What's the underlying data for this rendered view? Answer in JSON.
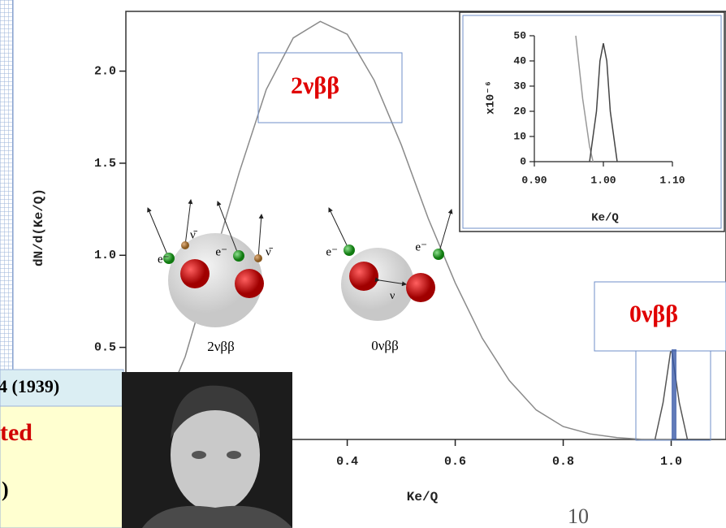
{
  "chart_data": [
    {
      "type": "line",
      "xlabel": "Ke/Q",
      "ylabel": "dN/d(Ke/Q)",
      "xlim": [
        -0.01,
        1.1
      ],
      "ylim": [
        0,
        2.32
      ],
      "xticks": [
        0.4,
        0.6,
        0.8,
        {
          "value": 1.0,
          "label": "1.0"
        }
      ],
      "yticks": [
        {
          "value": 0.5,
          "label": "0.5"
        },
        {
          "value": 1.0,
          "label": "1.0"
        },
        {
          "value": 1.5,
          "label": "1.5"
        },
        {
          "value": 2.0,
          "label": "2.0"
        }
      ],
      "series": [
        {
          "name": "2νββ",
          "color": "#8a8a8a",
          "x": [
            0,
            0.05,
            0.1,
            0.15,
            0.2,
            0.25,
            0.3,
            0.35,
            0.4,
            0.45,
            0.5,
            0.55,
            0.6,
            0.65,
            0.7,
            0.75,
            0.8,
            0.85,
            0.9,
            0.95,
            1.0
          ],
          "values": [
            0,
            0.1,
            0.45,
            0.95,
            1.45,
            1.9,
            2.18,
            2.27,
            2.2,
            1.95,
            1.6,
            1.2,
            0.85,
            0.55,
            0.32,
            0.16,
            0.07,
            0.03,
            0.01,
            0,
            0
          ]
        },
        {
          "name": "0νββ",
          "color": "#555555",
          "x": [
            0.97,
            0.985,
            1.0,
            1.015,
            1.03
          ],
          "values": [
            0,
            0.2,
            0.5,
            0.2,
            0
          ]
        }
      ]
    },
    {
      "type": "line",
      "xlabel": "Ke/Q",
      "ylabel": "x10⁻⁶",
      "xlim": [
        0.9,
        1.1
      ],
      "ylim": [
        0,
        50
      ],
      "xticks": [
        {
          "value": 0.9,
          "label": "0.90"
        },
        {
          "value": 1.0,
          "label": "1.00"
        },
        {
          "value": 1.1,
          "label": "1.10"
        }
      ],
      "yticks": [
        0,
        10,
        20,
        30,
        40,
        50
      ],
      "series": [
        {
          "color": "#999999",
          "x": [
            0.96,
            0.97,
            0.98,
            0.985
          ],
          "values": [
            50,
            25,
            6,
            0
          ]
        },
        {
          "color": "#444444",
          "x": [
            0.98,
            0.99,
            0.995,
            1.0,
            1.005,
            1.01,
            1.02
          ],
          "values": [
            0,
            20,
            40,
            47,
            40,
            20,
            0
          ]
        }
      ]
    }
  ],
  "diagram": {
    "electron": "e⁻",
    "antineutrino": "ν̄",
    "neutrino": "ν",
    "labels": [
      "2νββ",
      "0νββ"
    ]
  },
  "slide": {
    "reference": "4 (1939)",
    "highlight": "ted",
    "note": ")",
    "page_number": "10"
  }
}
